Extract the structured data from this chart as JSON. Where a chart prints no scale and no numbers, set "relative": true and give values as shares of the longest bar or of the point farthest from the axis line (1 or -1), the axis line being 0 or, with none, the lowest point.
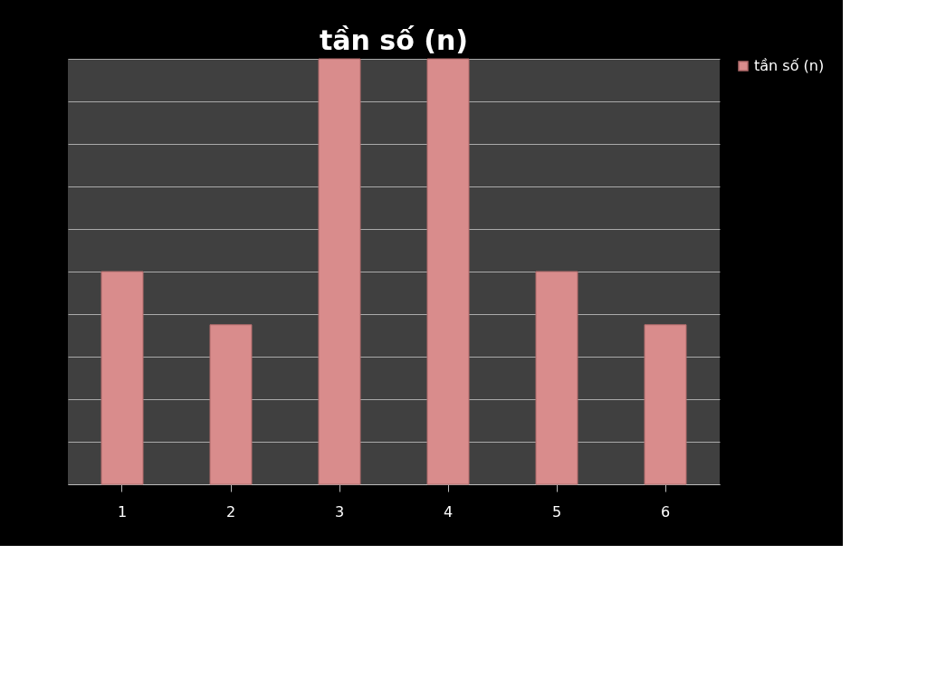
{
  "chart_data": {
    "type": "bar",
    "title": "tần số (n)",
    "relative": true,
    "grid": "y",
    "legend": "right",
    "categories": [
      "1",
      "2",
      "3",
      "4",
      "5",
      "6"
    ],
    "series": [
      {
        "name": "tần số (n)",
        "color": "#d98c8c",
        "values": [
          0.5,
          0.375,
          1,
          1,
          0.5,
          0.375
        ]
      }
    ]
  }
}
